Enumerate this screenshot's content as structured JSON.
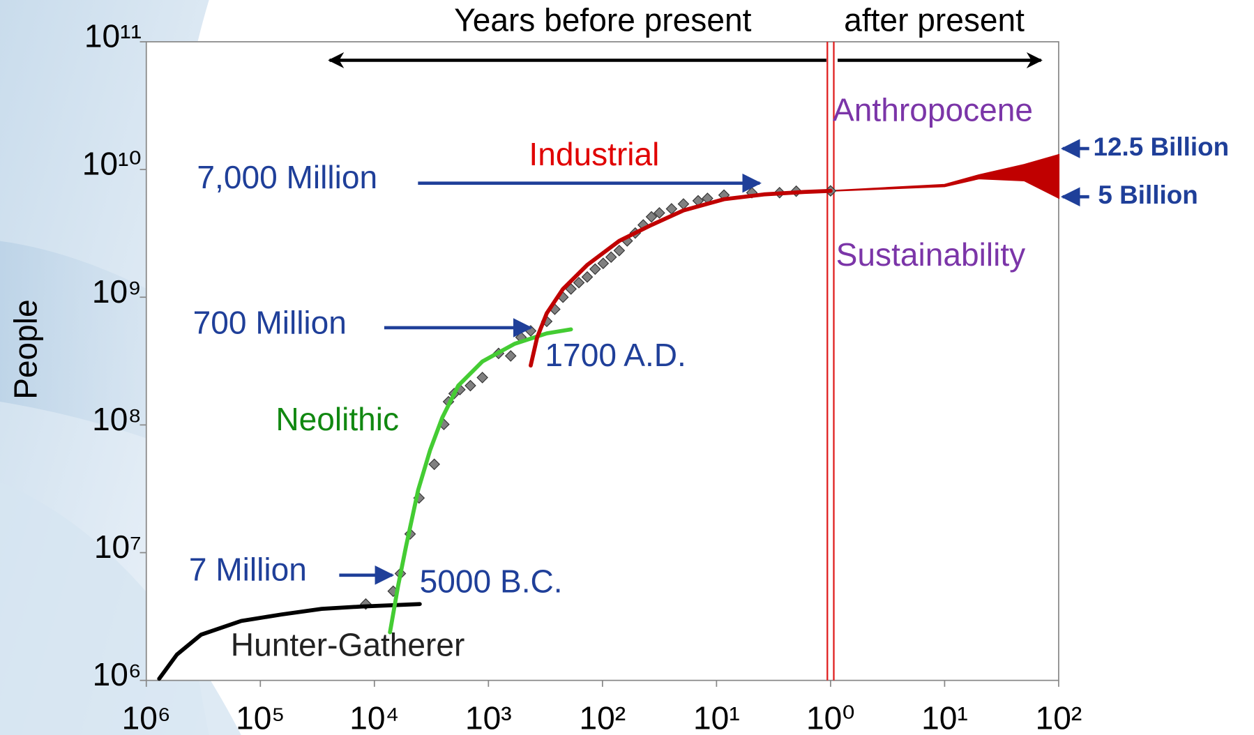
{
  "chart_data": {
    "type": "line",
    "header_left": "Years before present",
    "header_right": "after present",
    "ylabel": "People",
    "xscale": "log",
    "yscale": "log",
    "xlim": [
      -1000000,
      100
    ],
    "ylim": [
      1000000,
      100000000000
    ],
    "xticks": [
      {
        "value": -1000000,
        "label": "10⁶"
      },
      {
        "value": -100000,
        "label": "10⁵"
      },
      {
        "value": -10000,
        "label": "10⁴"
      },
      {
        "value": -1000,
        "label": "10³"
      },
      {
        "value": -100,
        "label": "10²"
      },
      {
        "value": -10,
        "label": "10¹"
      },
      {
        "value": -1,
        "label": "10⁰"
      },
      {
        "value": 10,
        "label": "10¹"
      },
      {
        "value": 100,
        "label": "10²"
      }
    ],
    "yticks": [
      {
        "value": 1000000,
        "label": "10⁶"
      },
      {
        "value": 10000000,
        "label": "10⁷"
      },
      {
        "value": 100000000,
        "label": "10⁸"
      },
      {
        "value": 1000000000,
        "label": "10⁹"
      },
      {
        "value": 10000000000,
        "label": "10¹⁰"
      },
      {
        "value": 100000000000,
        "label": "10¹¹"
      }
    ],
    "series": [
      {
        "name": "Hunter-Gatherer",
        "color": "#000000",
        "x": [
          -771000,
          -540000,
          -331000,
          -147000,
          -65300,
          -29000,
          -12900,
          -4000
        ],
        "values": [
          1030000,
          1590000,
          2280000,
          2920000,
          3280000,
          3630000,
          3790000,
          3960000
        ]
      },
      {
        "name": "Neolithic",
        "color": "#44cc33",
        "x": [
          -7300,
          -6210,
          -5280,
          -4130,
          -3240,
          -2540,
          -1840,
          -1130,
          -589,
          -308,
          -189
        ],
        "values": [
          2380000,
          5440000,
          11200000,
          31000000,
          63800000,
          114000000,
          203000000,
          314000000,
          432000000,
          521000000,
          560000000
        ]
      },
      {
        "name": "Industrial",
        "color": "#c00000",
        "x": [
          -426,
          -374,
          -308,
          -222,
          -136,
          -71.3,
          -37.2,
          -19.5,
          -8.6,
          -3.84,
          -1.7,
          -1
        ],
        "values": [
          292000000,
          485000000,
          749000000,
          1160000000,
          1790000000,
          2760000000,
          3680000000,
          4780000000,
          5850000000,
          6380000000,
          6670000000,
          6800000000
        ]
      }
    ],
    "points": {
      "color": "#808080",
      "x": [
        -11900,
        -6840,
        -5920,
        -4860,
        -4060,
        -2985,
        -2460,
        -2240,
        -2000,
        -1780,
        -1440,
        -1130,
        -815,
        -638,
        -518,
        -426,
        -308,
        -262,
        -222,
        -189,
        -161,
        -136,
        -116,
        -98.6,
        -84,
        -71.3,
        -60.7,
        -51.6,
        -43.9,
        -37.2,
        -31.7,
        -24.8,
        -19.5,
        -14.5,
        -12,
        -8.6,
        -4.9,
        -2.8,
        -2,
        -1
      ],
      "values": [
        3960000,
        4990000,
        6860000,
        14000000,
        26800000,
        49200000,
        101000000,
        152000000,
        176000000,
        189000000,
        203000000,
        235000000,
        363000000,
        347000000,
        485000000,
        545000000,
        647000000,
        805000000,
        1000000000,
        1160000000,
        1300000000,
        1440000000,
        1660000000,
        1840000000,
        2060000000,
        2320000000,
        2760000000,
        3180000000,
        3680000000,
        4260000000,
        4570000000,
        4920000000,
        5370000000,
        5690000000,
        5940000000,
        6300000000,
        6580000000,
        6580000000,
        6760000000,
        6800000000
      ]
    },
    "projection": {
      "color": "#c00000",
      "x": [
        1,
        10,
        20,
        50,
        100
      ],
      "values": [
        6800000000,
        7600000000,
        9040000000,
        10900000000,
        13000000000
      ],
      "lower": [
        6800000000,
        7380000000,
        8500000000,
        8200000000,
        6000000000
      ]
    },
    "annotations": {
      "million_7000": "7,000 Million",
      "million_700": "700 Million",
      "million_7": "7 Million",
      "ad_1700": "1700 A.D.",
      "bc_5000": "5000 B.C.",
      "anthropocene": "Anthropocene",
      "sustainability": "Sustainability",
      "billion_12_5": "12.5 Billion",
      "billion_5": "5 Billion"
    }
  }
}
